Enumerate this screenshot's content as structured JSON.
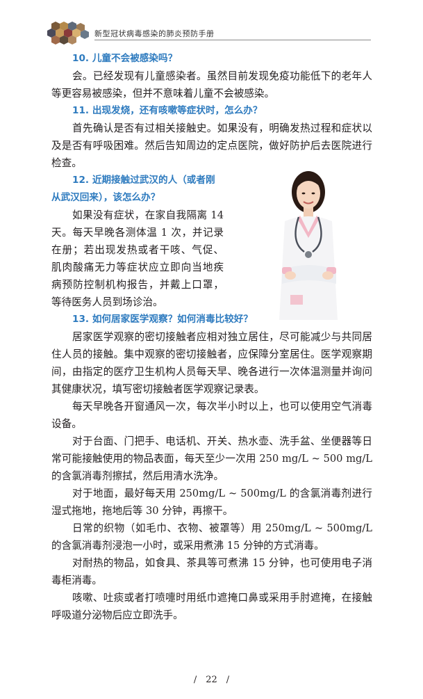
{
  "header": {
    "title": "新型冠状病毒感染的肺炎预防手册"
  },
  "sections": [
    {
      "question": "10. 儿童不会被感染吗？",
      "paragraphs": [
        "会。已经发现有儿童感染者。虽然目前发现免疫功能低下的老年人等更容易被感染，但并不意味着儿童不会被感染。"
      ]
    },
    {
      "question": "11. 出现发烧，还有咳嗽等症状时，怎么办？",
      "paragraphs": [
        "首先确认是否有过相关接触史。如果没有，明确发热过程和症状以及是否有呼吸困难。然后告知周边的定点医院，做好防护后去医院进行检查。"
      ]
    },
    {
      "question": "12. 近期接触过武汉的人（或者刚从武汉回来），该怎么办？",
      "paragraphs": [
        "如果没有症状，在家自我隔离 14 天。每天早晚各测体温 1 次，并记录在册；若出现发热或者干咳、气促、肌肉酸痛无力等症状应立即向当地疾病预防控制机构报告，并戴上口罩，等待医务人员到场诊治。"
      ]
    },
    {
      "question": "13. 如何居家医学观察？如何消毒比较好？",
      "paragraphs": [
        "居家医学观察的密切接触者应相对独立居住，尽可能减少与共同居住人员的接触。集中观察的密切接触者，应保障分室居住。医学观察期间，由指定的医疗卫生机构人员每天早、晚各进行一次体温测量并询问其健康状况，填写密切接触者医学观察记录表。",
        "每天早晚各开窗通风一次，每次半小时以上，也可以使用空气消毒设备。",
        "对于台面、门把手、电话机、开关、热水壶、洗手盆、坐便器等日常可能接触使用的物品表面，每天至少一次用 250 mg/L ~ 500 mg/L 的含氯消毒剂擦拭，然后用清水洗净。",
        "对于地面，最好每天用 250mg/L ~ 500mg/L 的含氯消毒剂进行湿式拖地，拖地后等 30 分钟，再擦干。",
        "日常的织物（如毛巾、衣物、被罩等）用 250mg/L ~ 500mg/L 的含氯消毒剂浸泡一小时，或采用煮沸 15 分钟的方式消毒。",
        "对耐热的物品，如食具、茶具等可煮沸 15 分钟，也可使用电子消毒柜消毒。",
        "咳嗽、吐痰或者打喷嚏时用纸巾遮掩口鼻或采用手肘遮掩，在接触呼吸道分泌物后应立即洗手。"
      ]
    }
  ],
  "footer": {
    "page_number": "/　22　/"
  },
  "colors": {
    "question_blue": "#2e7bbf",
    "rule_gray": "#8a8a8a"
  }
}
